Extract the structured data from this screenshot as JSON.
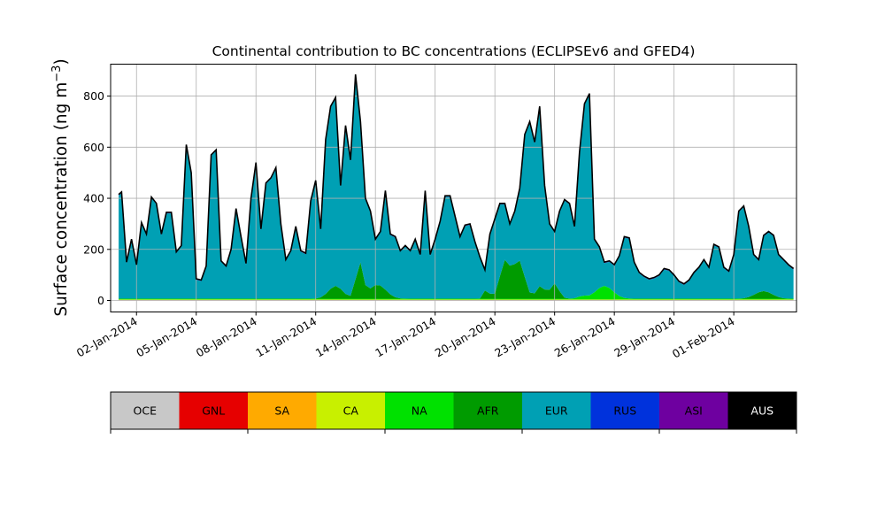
{
  "chart_data": {
    "type": "area",
    "stacked": true,
    "title": "Continental contribution to BC concentrations (ECLIPSEv6 and GFED4)",
    "ylabel_main": "Surface concentration (ng m",
    "ylabel_sup": "−3",
    "ylabel_close": ")",
    "ylim": [
      -45,
      925
    ],
    "yticks": [
      0,
      200,
      400,
      600,
      800
    ],
    "xlim": [
      -1.3,
      33.15
    ],
    "grid": true,
    "xtick_labels": [
      {
        "day": 0,
        "label": "02-Jan-2014"
      },
      {
        "day": 3,
        "label": "05-Jan-2014"
      },
      {
        "day": 6,
        "label": "08-Jan-2014"
      },
      {
        "day": 9,
        "label": "11-Jan-2014"
      },
      {
        "day": 12,
        "label": "14-Jan-2014"
      },
      {
        "day": 15,
        "label": "17-Jan-2014"
      },
      {
        "day": 18,
        "label": "20-Jan-2014"
      },
      {
        "day": 21,
        "label": "23-Jan-2014"
      },
      {
        "day": 24,
        "label": "26-Jan-2014"
      },
      {
        "day": 27,
        "label": "29-Jan-2014"
      },
      {
        "day": 30,
        "label": "01-Feb-2014"
      }
    ],
    "x_days": [
      -0.9,
      -0.75,
      -0.5,
      -0.25,
      0,
      0.25,
      0.5,
      0.75,
      1,
      1.25,
      1.5,
      1.75,
      2,
      2.25,
      2.5,
      2.75,
      3,
      3.25,
      3.5,
      3.75,
      4,
      4.25,
      4.5,
      4.75,
      5,
      5.25,
      5.5,
      5.75,
      6,
      6.25,
      6.5,
      6.75,
      7,
      7.25,
      7.5,
      7.75,
      8,
      8.25,
      8.5,
      8.75,
      9,
      9.25,
      9.5,
      9.75,
      10,
      10.25,
      10.5,
      10.75,
      11,
      11.25,
      11.5,
      11.75,
      12,
      12.25,
      12.5,
      12.75,
      13,
      13.25,
      13.5,
      13.75,
      14,
      14.25,
      14.5,
      14.75,
      15,
      15.25,
      15.5,
      15.75,
      16,
      16.25,
      16.5,
      16.75,
      17,
      17.25,
      17.5,
      17.75,
      18,
      18.25,
      18.5,
      18.75,
      19,
      19.25,
      19.5,
      19.75,
      20,
      20.25,
      20.5,
      20.75,
      21,
      21.25,
      21.5,
      21.75,
      22,
      22.25,
      22.5,
      22.75,
      23,
      23.25,
      23.5,
      23.75,
      24,
      24.25,
      24.5,
      24.75,
      25,
      25.25,
      25.5,
      25.75,
      26,
      26.25,
      26.5,
      26.75,
      27,
      27.25,
      27.5,
      27.75,
      28,
      28.25,
      28.5,
      28.75,
      29,
      29.25,
      29.5,
      29.75,
      30,
      30.25,
      30.5,
      30.75,
      31,
      31.25,
      31.5,
      31.75,
      32,
      32.25,
      32.5,
      32.75,
      33
    ],
    "series": [
      {
        "name": "OCE",
        "color": "#c8c8c8",
        "constant": 1
      },
      {
        "name": "GNL",
        "color": "#e60000",
        "constant": 0.5
      },
      {
        "name": "SA",
        "color": "#ffaa00",
        "constant": 0.5
      },
      {
        "name": "CA",
        "color": "#c8f000",
        "constant": 2
      },
      {
        "name": "NA",
        "color": "#00e100",
        "constant": 3,
        "bumps": [
          {
            "c": 23.5,
            "w": 0.6,
            "h": 50
          },
          {
            "c": 22.4,
            "w": 0.3,
            "h": 10
          }
        ]
      },
      {
        "name": "AFR",
        "color": "#009b00",
        "constant": 0,
        "bumps": [
          {
            "c": 10.0,
            "w": 0.5,
            "h": 50
          },
          {
            "c": 11.2,
            "w": 0.25,
            "h": 140
          },
          {
            "c": 12.1,
            "w": 0.6,
            "h": 55
          },
          {
            "c": 17.6,
            "w": 0.15,
            "h": 50
          },
          {
            "c": 18.5,
            "w": 0.35,
            "h": 145
          },
          {
            "c": 19.2,
            "w": 0.4,
            "h": 150
          },
          {
            "c": 20.3,
            "w": 0.3,
            "h": 50
          },
          {
            "c": 21.0,
            "w": 0.3,
            "h": 60
          },
          {
            "c": 31.5,
            "w": 0.6,
            "h": 30
          }
        ]
      },
      {
        "name": "EUR",
        "color": "#00a0b4",
        "remainder": true
      },
      {
        "name": "RUS",
        "color": "#0032dc",
        "constant": 1
      },
      {
        "name": "ASI",
        "color": "#6e00a0",
        "constant": 3
      },
      {
        "name": "AUS",
        "color": "#000000",
        "constant": 0
      }
    ],
    "total": [
      415,
      425,
      150,
      240,
      140,
      305,
      260,
      405,
      380,
      260,
      345,
      345,
      190,
      215,
      610,
      500,
      85,
      80,
      135,
      570,
      590,
      155,
      135,
      200,
      360,
      250,
      145,
      400,
      540,
      280,
      460,
      480,
      520,
      300,
      160,
      195,
      290,
      195,
      185,
      390,
      470,
      280,
      630,
      760,
      795,
      450,
      685,
      550,
      885,
      700,
      400,
      350,
      240,
      270,
      430,
      260,
      250,
      195,
      215,
      195,
      240,
      180,
      430,
      180,
      240,
      310,
      410,
      410,
      330,
      250,
      295,
      300,
      230,
      170,
      120,
      260,
      320,
      380,
      380,
      300,
      350,
      440,
      650,
      700,
      620,
      760,
      450,
      300,
      270,
      350,
      395,
      380,
      290,
      580,
      770,
      810,
      240,
      210,
      150,
      155,
      140,
      175,
      250,
      245,
      150,
      110,
      95,
      85,
      90,
      100,
      125,
      120,
      100,
      75,
      65,
      80,
      110,
      130,
      160,
      130,
      220,
      210,
      130,
      115,
      180,
      350,
      370,
      290,
      180,
      160,
      255,
      270,
      255,
      180,
      160,
      140,
      125
    ]
  },
  "colorbar": {
    "labels": [
      "OCE",
      "GNL",
      "SA",
      "CA",
      "NA",
      "AFR",
      "EUR",
      "RUS",
      "ASI",
      "AUS"
    ],
    "colors": [
      "#c8c8c8",
      "#e60000",
      "#ffaa00",
      "#c8f000",
      "#00e100",
      "#009b00",
      "#00a0b4",
      "#0032dc",
      "#6e00a0",
      "#000000"
    ],
    "text_colors": [
      "#000000",
      "#000000",
      "#000000",
      "#000000",
      "#000000",
      "#000000",
      "#000000",
      "#000000",
      "#000000",
      "#ffffff"
    ]
  }
}
